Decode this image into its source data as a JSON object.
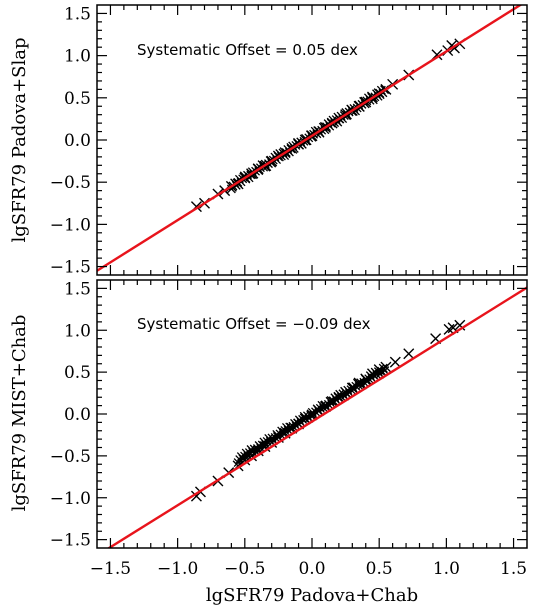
{
  "chart_data": [
    {
      "type": "scatter",
      "position": "top",
      "xlabel": "",
      "ylabel": "lgSFR79 Padova+Slap",
      "annotation": "Systematic Offset = 0.05 dex",
      "xlim": [
        -1.6,
        1.6
      ],
      "ylim": [
        -1.6,
        1.6
      ],
      "xticks": [
        -1.5,
        -1.0,
        -0.5,
        0.0,
        0.5,
        1.0,
        1.5
      ],
      "yticks": [
        -1.5,
        -1.0,
        -0.5,
        0.0,
        0.5,
        1.0,
        1.5
      ],
      "xtick_labels": [
        "−1.5",
        "−1.0",
        "−0.5",
        "0.0",
        "0.5",
        "1.0",
        "1.5"
      ],
      "ytick_labels": [
        "−1.5",
        "−1.0",
        "−0.5",
        "0.0",
        "0.5",
        "1.0",
        "1.5"
      ],
      "marker": "x",
      "marker_color": "#000000",
      "line_color": "#e8141c",
      "fit_line": {
        "slope": 1.0,
        "intercept": 0.05
      },
      "points": [
        {
          "x": -0.86,
          "y": -0.79
        },
        {
          "x": -0.8,
          "y": -0.75
        },
        {
          "x": -0.7,
          "y": -0.64
        },
        {
          "x": -0.65,
          "y": -0.6
        },
        {
          "x": -0.6,
          "y": -0.55
        },
        {
          "x": -0.55,
          "y": -0.52
        },
        {
          "x": -0.5,
          "y": -0.45
        },
        {
          "x": -0.45,
          "y": -0.4
        },
        {
          "x": -0.4,
          "y": -0.34
        },
        {
          "x": -0.35,
          "y": -0.31
        },
        {
          "x": -0.3,
          "y": -0.25
        },
        {
          "x": -0.25,
          "y": -0.19
        },
        {
          "x": -0.2,
          "y": -0.15
        },
        {
          "x": -0.15,
          "y": -0.1
        },
        {
          "x": -0.1,
          "y": -0.05
        },
        {
          "x": -0.05,
          "y": 0.0
        },
        {
          "x": 0.0,
          "y": 0.05
        },
        {
          "x": 0.05,
          "y": 0.1
        },
        {
          "x": 0.1,
          "y": 0.15
        },
        {
          "x": 0.15,
          "y": 0.2
        },
        {
          "x": 0.2,
          "y": 0.26
        },
        {
          "x": 0.25,
          "y": 0.3
        },
        {
          "x": 0.3,
          "y": 0.35
        },
        {
          "x": 0.35,
          "y": 0.4
        },
        {
          "x": 0.4,
          "y": 0.45
        },
        {
          "x": 0.45,
          "y": 0.51
        },
        {
          "x": 0.5,
          "y": 0.55
        },
        {
          "x": 0.55,
          "y": 0.6
        },
        {
          "x": 0.6,
          "y": 0.66
        },
        {
          "x": 0.72,
          "y": 0.77
        },
        {
          "x": 0.93,
          "y": 1.01
        },
        {
          "x": 1.01,
          "y": 1.06
        },
        {
          "x": 1.04,
          "y": 1.12
        },
        {
          "x": 1.06,
          "y": 1.09
        },
        {
          "x": 1.1,
          "y": 1.14
        }
      ],
      "band": {
        "x_range": [
          -0.6,
          0.55
        ],
        "offset": 0.05,
        "spread": 0.03
      }
    },
    {
      "type": "scatter",
      "position": "bottom",
      "xlabel": "lgSFR79 Padova+Chab",
      "ylabel": "lgSFR79 MIST+Chab",
      "annotation": "Systematic Offset = −0.09 dex",
      "xlim": [
        -1.6,
        1.6
      ],
      "ylim": [
        -1.6,
        1.6
      ],
      "xticks": [
        -1.5,
        -1.0,
        -0.5,
        0.0,
        0.5,
        1.0,
        1.5
      ],
      "yticks": [
        -1.5,
        -1.0,
        -0.5,
        0.0,
        0.5,
        1.0,
        1.5
      ],
      "xtick_labels": [
        "−1.5",
        "−1.0",
        "−0.5",
        "0.0",
        "0.5",
        "1.0",
        "1.5"
      ],
      "ytick_labels": [
        "−1.5",
        "−1.0",
        "−0.5",
        "0.0",
        "0.5",
        "1.0",
        "1.5"
      ],
      "marker": "x",
      "marker_color": "#000000",
      "line_color": "#e8141c",
      "fit_line": {
        "slope": 1.0,
        "intercept": -0.09
      },
      "points": [
        {
          "x": -0.86,
          "y": -0.98
        },
        {
          "x": -0.83,
          "y": -0.93
        },
        {
          "x": -0.7,
          "y": -0.8
        },
        {
          "x": -0.62,
          "y": -0.7
        },
        {
          "x": -0.55,
          "y": -0.62
        },
        {
          "x": -0.5,
          "y": -0.55
        },
        {
          "x": -0.45,
          "y": -0.5
        },
        {
          "x": -0.4,
          "y": -0.44
        },
        {
          "x": -0.35,
          "y": -0.39
        },
        {
          "x": -0.3,
          "y": -0.34
        },
        {
          "x": -0.25,
          "y": -0.28
        },
        {
          "x": -0.2,
          "y": -0.23
        },
        {
          "x": -0.15,
          "y": -0.17
        },
        {
          "x": -0.1,
          "y": -0.12
        },
        {
          "x": -0.05,
          "y": -0.06
        },
        {
          "x": 0.0,
          "y": -0.01
        },
        {
          "x": 0.05,
          "y": 0.04
        },
        {
          "x": 0.1,
          "y": 0.09
        },
        {
          "x": 0.15,
          "y": 0.15
        },
        {
          "x": 0.2,
          "y": 0.2
        },
        {
          "x": 0.25,
          "y": 0.26
        },
        {
          "x": 0.3,
          "y": 0.31
        },
        {
          "x": 0.35,
          "y": 0.37
        },
        {
          "x": 0.4,
          "y": 0.42
        },
        {
          "x": 0.45,
          "y": 0.48
        },
        {
          "x": 0.5,
          "y": 0.53
        },
        {
          "x": 0.55,
          "y": 0.56
        },
        {
          "x": 0.62,
          "y": 0.62
        },
        {
          "x": 0.72,
          "y": 0.72
        },
        {
          "x": 0.92,
          "y": 0.9
        },
        {
          "x": 1.02,
          "y": 1.01
        },
        {
          "x": 1.05,
          "y": 1.03
        },
        {
          "x": 1.1,
          "y": 1.06
        }
      ],
      "band": {
        "x_range": [
          -0.55,
          0.55
        ],
        "offset": 0.0,
        "spread": 0.03
      }
    }
  ]
}
